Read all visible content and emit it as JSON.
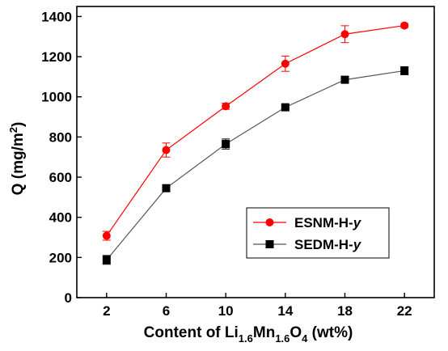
{
  "chart_data": {
    "type": "line",
    "title": "",
    "xlabel": {
      "base": "Content of Li",
      "sub1": "1.6",
      "mid1": "Mn",
      "sub2": "1.6",
      "mid2": "O",
      "sub3": "4",
      "tail": " (wt%)"
    },
    "ylabel": {
      "base": "Q (mg/m",
      "sup": "2",
      "tail": ")"
    },
    "x": [
      2,
      6,
      10,
      14,
      18,
      22
    ],
    "xticks": [
      "2",
      "6",
      "10",
      "14",
      "18",
      "22"
    ],
    "xlim": [
      0,
      24
    ],
    "ylim": [
      0,
      1450
    ],
    "yticks": [
      "0",
      "200",
      "400",
      "600",
      "800",
      "1000",
      "1200",
      "1400"
    ],
    "yticks_values": [
      0,
      200,
      400,
      600,
      800,
      1000,
      1200,
      1400
    ],
    "grid": false,
    "legend": "bottom-right",
    "series": [
      {
        "name": "ESNM-H-y",
        "name_base": "ESNM-H-",
        "name_italic": "y",
        "color": "#ff0000",
        "marker": "circle",
        "values": [
          308,
          735,
          953,
          1165,
          1312,
          1355
        ],
        "errors": [
          22,
          35,
          15,
          38,
          42,
          10
        ]
      },
      {
        "name": "SEDM-H-y",
        "name_base": "SEDM-H-",
        "name_italic": "y",
        "color": "#000000",
        "line_color": "#555555",
        "marker": "square",
        "values": [
          188,
          545,
          765,
          948,
          1085,
          1130
        ],
        "errors": [
          22,
          10,
          25,
          8,
          15,
          20
        ]
      }
    ]
  }
}
